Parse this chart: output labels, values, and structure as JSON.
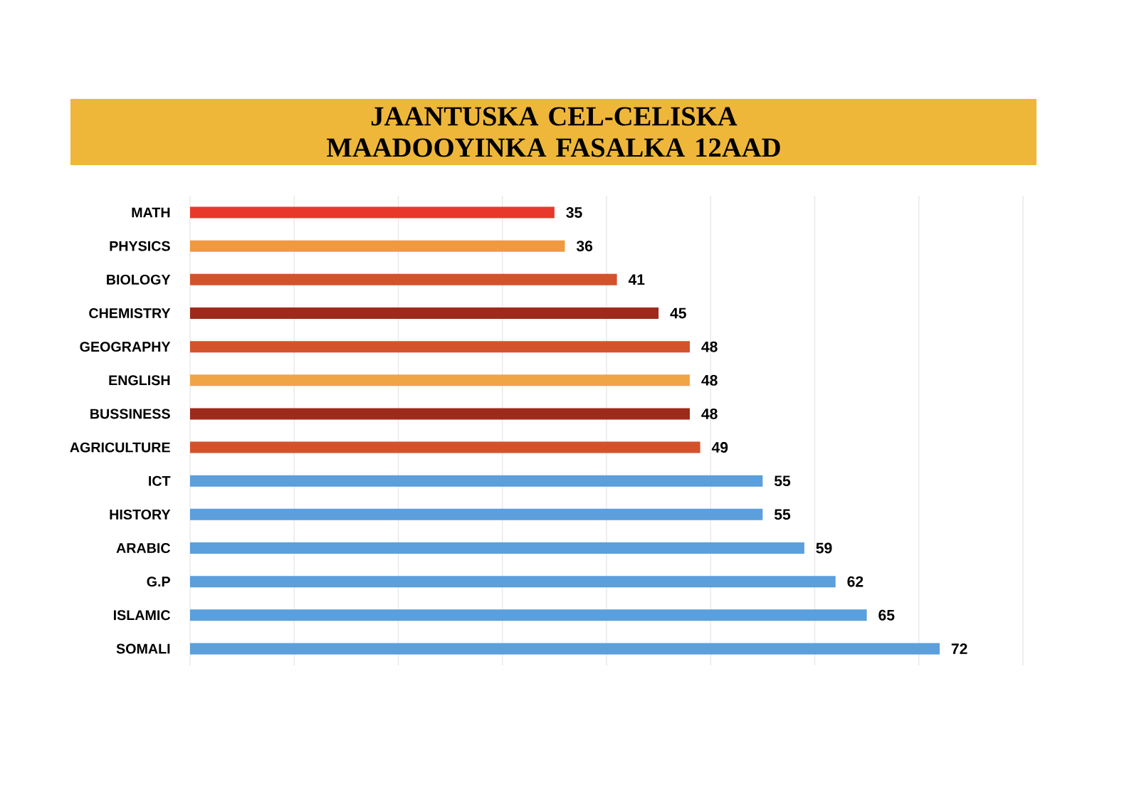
{
  "chart_data": {
    "type": "bar",
    "orientation": "horizontal",
    "title": "JAANTUSKA CEL-CELISKA MAADOOYINKA FASALKA 12AAD",
    "categories": [
      "MATH",
      "PHYSICS",
      "BIOLOGY",
      "CHEMISTRY",
      "GEOGRAPHY",
      "ENGLISH",
      "BUSSINESS",
      "AGRICULTURE",
      "ICT",
      "HISTORY",
      "ARABIC",
      "G.P",
      "ISLAMIC",
      "SOMALI"
    ],
    "values": [
      35,
      36,
      41,
      45,
      48,
      48,
      48,
      49,
      55,
      55,
      59,
      62,
      65,
      72
    ],
    "colors": [
      "#e8382c",
      "#ef9a3e",
      "#d4522b",
      "#9e2a1b",
      "#d4522b",
      "#f0a446",
      "#9e2a1b",
      "#d4522b",
      "#5b9fdc",
      "#5b9fdc",
      "#5b9fdc",
      "#5b9fdc",
      "#5b9fdc",
      "#5b9fdc"
    ],
    "xlim": [
      0,
      80
    ],
    "xticks": [
      {
        "value": 0,
        "label": null
      },
      {
        "value": 10,
        "label": null
      },
      {
        "value": 20,
        "label": null
      },
      {
        "value": 30,
        "label": null
      },
      {
        "value": 40,
        "label": null
      },
      {
        "value": 50,
        "label": null
      },
      {
        "value": 60,
        "label": null
      },
      {
        "value": 70,
        "label": null
      },
      {
        "value": 80,
        "label": null
      }
    ],
    "grid": "x",
    "data_labels": true
  }
}
